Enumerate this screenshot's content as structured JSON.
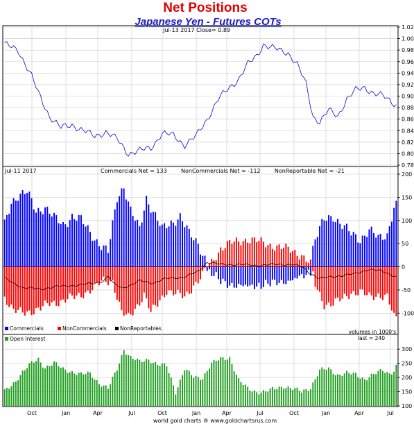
{
  "chart_data": {
    "type": "bar",
    "title": "Net Positions",
    "subtitle": "Japanese Yen - Futures COTs",
    "footer": "world gold charts ® www.goldchartsrus.com",
    "colors": {
      "title": "#e00000",
      "subtitle": "#1a1acc",
      "price_line": "#2020d0",
      "commercials": "#0000ff",
      "noncommercials": "#ff0000",
      "nonreportables": "#000000",
      "open_interest": "#1e9e1e",
      "grid": "#c8c8c8"
    },
    "x_labels": [
      "Oct",
      "Jan",
      "Apr",
      "Jul",
      "Oct",
      "Jan",
      "Apr",
      "Jul",
      "Oct",
      "Jan",
      "Apr",
      "Jul"
    ],
    "price_panel": {
      "header": "Jul-13  2017    Close= 0.89",
      "ylim": [
        0.78,
        1.02
      ],
      "yticks": [
        "1.02",
        "1.00",
        "0.98",
        "0.96",
        "0.94",
        "0.92",
        "0.90",
        "0.88",
        "0.86",
        "0.84",
        "0.82",
        "0.80",
        "0.78"
      ],
      "series_keypoints": [
        [
          0,
          0.99
        ],
        [
          6,
          0.98
        ],
        [
          12,
          0.935
        ],
        [
          15,
          0.905
        ],
        [
          20,
          0.865
        ],
        [
          25,
          0.845
        ],
        [
          30,
          0.85
        ],
        [
          35,
          0.84
        ],
        [
          40,
          0.83
        ],
        [
          45,
          0.838
        ],
        [
          50,
          0.825
        ],
        [
          55,
          0.8
        ],
        [
          60,
          0.805
        ],
        [
          65,
          0.81
        ],
        [
          70,
          0.835
        ],
        [
          75,
          0.832
        ],
        [
          80,
          0.815
        ],
        [
          85,
          0.83
        ],
        [
          90,
          0.86
        ],
        [
          95,
          0.895
        ],
        [
          100,
          0.915
        ],
        [
          104,
          0.93
        ],
        [
          108,
          0.955
        ],
        [
          112,
          0.97
        ],
        [
          115,
          0.99
        ],
        [
          118,
          0.985
        ],
        [
          122,
          0.98
        ],
        [
          126,
          0.975
        ],
        [
          130,
          0.955
        ],
        [
          134,
          0.92
        ],
        [
          137,
          0.865
        ],
        [
          140,
          0.855
        ],
        [
          144,
          0.875
        ],
        [
          148,
          0.865
        ],
        [
          152,
          0.895
        ],
        [
          156,
          0.91
        ],
        [
          160,
          0.915
        ],
        [
          164,
          0.905
        ],
        [
          168,
          0.9
        ],
        [
          172,
          0.89
        ],
        [
          174,
          0.885
        ]
      ]
    },
    "cot_panel": {
      "date_label": "Jul-11  2017",
      "readout": "Commercials Net = 133        NonCommercials Net = -112        NonReportable Net = -21",
      "ylim": [
        -125,
        200
      ],
      "yticks": [
        "200",
        "150",
        "100",
        "50",
        "0",
        "-50",
        "-100"
      ],
      "legend": [
        "Commercials",
        "NonCommercials",
        "NonReportables"
      ],
      "units_note": "volumes in 1000's",
      "commercials_keypoints": [
        [
          0,
          90
        ],
        [
          3,
          140
        ],
        [
          6,
          155
        ],
        [
          10,
          160
        ],
        [
          14,
          120
        ],
        [
          18,
          130
        ],
        [
          22,
          105
        ],
        [
          26,
          90
        ],
        [
          30,
          110
        ],
        [
          34,
          100
        ],
        [
          38,
          75
        ],
        [
          42,
          50
        ],
        [
          46,
          30
        ],
        [
          50,
          150
        ],
        [
          53,
          175
        ],
        [
          56,
          120
        ],
        [
          60,
          80
        ],
        [
          63,
          150
        ],
        [
          66,
          120
        ],
        [
          70,
          80
        ],
        [
          74,
          95
        ],
        [
          78,
          110
        ],
        [
          82,
          70
        ],
        [
          86,
          50
        ],
        [
          90,
          10
        ],
        [
          92,
          0
        ],
        [
          125,
          0
        ],
        [
          135,
          0
        ],
        [
          138,
          60
        ],
        [
          142,
          100
        ],
        [
          146,
          110
        ],
        [
          150,
          90
        ],
        [
          154,
          70
        ],
        [
          158,
          60
        ],
        [
          162,
          80
        ],
        [
          166,
          60
        ],
        [
          170,
          70
        ],
        [
          173,
          130
        ],
        [
          174,
          133
        ]
      ],
      "noncommercials_keypoints": [
        [
          0,
          -65
        ],
        [
          4,
          -95
        ],
        [
          8,
          -100
        ],
        [
          12,
          -95
        ],
        [
          16,
          -90
        ],
        [
          20,
          -80
        ],
        [
          24,
          -75
        ],
        [
          28,
          -70
        ],
        [
          32,
          -65
        ],
        [
          36,
          -55
        ],
        [
          40,
          -45
        ],
        [
          44,
          -30
        ],
        [
          48,
          -30
        ],
        [
          52,
          -100
        ],
        [
          55,
          -110
        ],
        [
          58,
          -90
        ],
        [
          62,
          -60
        ],
        [
          65,
          -100
        ],
        [
          68,
          -80
        ],
        [
          72,
          -50
        ],
        [
          76,
          -60
        ],
        [
          80,
          -65
        ],
        [
          84,
          -40
        ],
        [
          88,
          -20
        ],
        [
          90,
          0
        ],
        [
          92,
          10
        ],
        [
          96,
          40
        ],
        [
          100,
          50
        ],
        [
          104,
          55
        ],
        [
          108,
          60
        ],
        [
          112,
          55
        ],
        [
          116,
          50
        ],
        [
          120,
          45
        ],
        [
          124,
          40
        ],
        [
          128,
          35
        ],
        [
          132,
          25
        ],
        [
          136,
          5
        ],
        [
          138,
          -40
        ],
        [
          142,
          -80
        ],
        [
          146,
          -80
        ],
        [
          150,
          -70
        ],
        [
          154,
          -55
        ],
        [
          158,
          -55
        ],
        [
          162,
          -65
        ],
        [
          166,
          -60
        ],
        [
          170,
          -65
        ],
        [
          173,
          -110
        ],
        [
          174,
          -112
        ]
      ],
      "nonreportables_keypoints": [
        [
          0,
          -25
        ],
        [
          8,
          -45
        ],
        [
          16,
          -48
        ],
        [
          24,
          -42
        ],
        [
          32,
          -40
        ],
        [
          40,
          -35
        ],
        [
          44,
          -30
        ],
        [
          46,
          -20
        ],
        [
          48,
          -35
        ],
        [
          52,
          -45
        ],
        [
          56,
          -40
        ],
        [
          60,
          -30
        ],
        [
          66,
          -35
        ],
        [
          72,
          -25
        ],
        [
          80,
          -22
        ],
        [
          86,
          -10
        ],
        [
          90,
          10
        ],
        [
          96,
          5
        ],
        [
          104,
          5
        ],
        [
          112,
          3
        ],
        [
          120,
          5
        ],
        [
          128,
          5
        ],
        [
          132,
          0
        ],
        [
          136,
          -15
        ],
        [
          140,
          -25
        ],
        [
          148,
          -20
        ],
        [
          156,
          -15
        ],
        [
          162,
          -5
        ],
        [
          168,
          -10
        ],
        [
          174,
          -21
        ]
      ]
    },
    "open_interest_panel": {
      "label": "Open Interest",
      "last_label": "last = 240",
      "ylim": [
        100,
        320
      ],
      "yticks": [
        "300",
        "250",
        "200",
        "150",
        "100"
      ],
      "keypoints": [
        [
          0,
          150
        ],
        [
          4,
          180
        ],
        [
          8,
          220
        ],
        [
          12,
          250
        ],
        [
          15,
          265
        ],
        [
          18,
          235
        ],
        [
          22,
          250
        ],
        [
          26,
          230
        ],
        [
          30,
          220
        ],
        [
          34,
          210
        ],
        [
          38,
          215
        ],
        [
          42,
          180
        ],
        [
          46,
          160
        ],
        [
          50,
          230
        ],
        [
          53,
          300
        ],
        [
          56,
          270
        ],
        [
          60,
          255
        ],
        [
          64,
          265
        ],
        [
          68,
          245
        ],
        [
          72,
          240
        ],
        [
          76,
          150
        ],
        [
          80,
          230
        ],
        [
          84,
          200
        ],
        [
          88,
          200
        ],
        [
          92,
          250
        ],
        [
          96,
          265
        ],
        [
          100,
          270
        ],
        [
          104,
          190
        ],
        [
          108,
          160
        ],
        [
          112,
          150
        ],
        [
          116,
          150
        ],
        [
          120,
          160
        ],
        [
          124,
          170
        ],
        [
          128,
          160
        ],
        [
          132,
          150
        ],
        [
          136,
          165
        ],
        [
          140,
          225
        ],
        [
          144,
          230
        ],
        [
          148,
          210
        ],
        [
          152,
          215
        ],
        [
          156,
          210
        ],
        [
          160,
          195
        ],
        [
          164,
          210
        ],
        [
          168,
          225
        ],
        [
          171,
          215
        ],
        [
          173,
          225
        ],
        [
          174,
          240
        ]
      ]
    }
  }
}
